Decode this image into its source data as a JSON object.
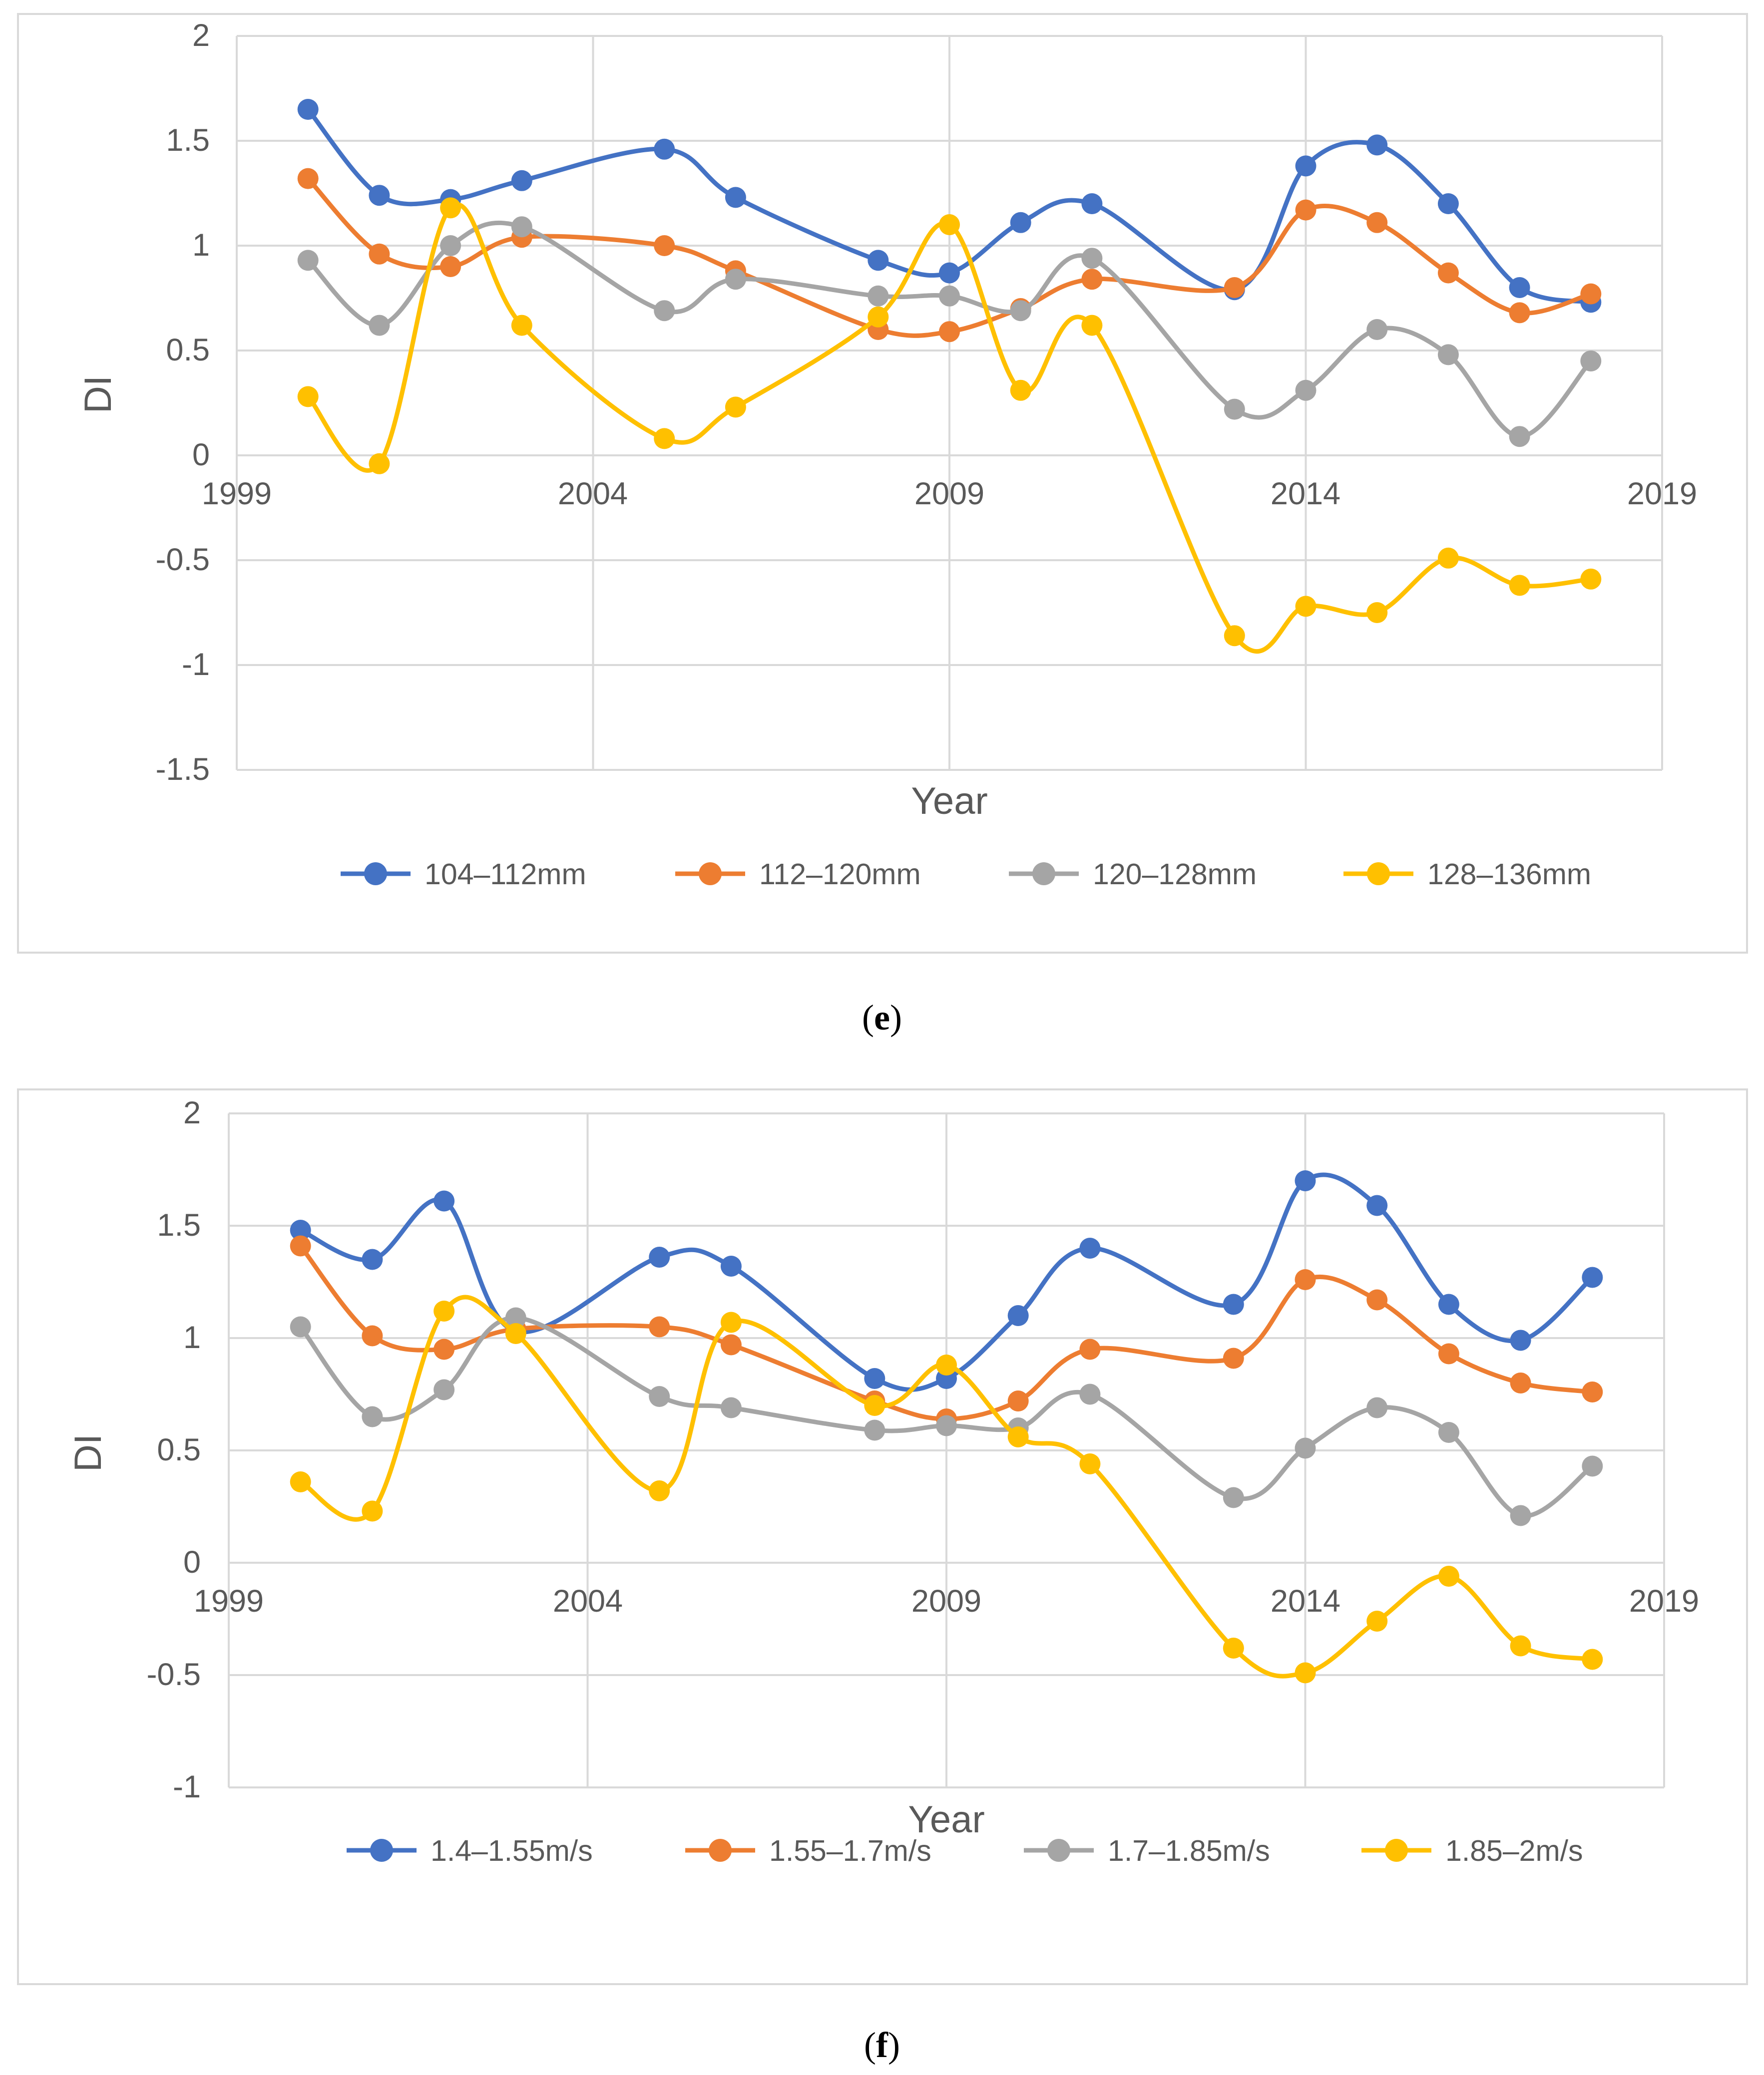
{
  "panels": [
    {
      "caption": "e",
      "chart_data": {
        "type": "line",
        "smooth": true,
        "title": "",
        "xlabel": "Year",
        "ylabel": "DI",
        "xlim": [
          1999,
          2019
        ],
        "ylim": [
          -1.5,
          2
        ],
        "xticks": [
          1999,
          2004,
          2009,
          2014,
          2019
        ],
        "yticks": [
          -1.5,
          -1,
          -0.5,
          0,
          0.5,
          1,
          1.5,
          2
        ],
        "ytick_labels": [
          "-1.5",
          "-1",
          "-0.5",
          "0",
          "0.5",
          "1",
          "1.5",
          "2"
        ],
        "grid": true,
        "legend_position": "bottom",
        "x": [
          2000,
          2001,
          2002,
          2003,
          2005,
          2006,
          2008,
          2009,
          2010,
          2011,
          2013,
          2014,
          2015,
          2016,
          2017,
          2018
        ],
        "series": [
          {
            "name": "104–112mm",
            "color": "#4472C4",
            "values": [
              1.65,
              1.24,
              1.22,
              1.31,
              1.46,
              1.23,
              0.93,
              0.87,
              1.11,
              1.2,
              0.79,
              1.38,
              1.48,
              1.2,
              0.8,
              0.73
            ]
          },
          {
            "name": "112–120mm",
            "color": "#ED7D31",
            "values": [
              1.32,
              0.96,
              0.9,
              1.04,
              1.0,
              0.88,
              0.6,
              0.59,
              0.7,
              0.84,
              0.8,
              1.17,
              1.11,
              0.87,
              0.68,
              0.77
            ]
          },
          {
            "name": "120–128mm",
            "color": "#A5A5A5",
            "values": [
              0.93,
              0.62,
              1.0,
              1.09,
              0.69,
              0.84,
              0.76,
              0.76,
              0.69,
              0.94,
              0.22,
              0.31,
              0.6,
              0.48,
              0.09,
              0.45
            ]
          },
          {
            "name": "128–136mm",
            "color": "#FFC000",
            "values": [
              0.28,
              -0.04,
              1.18,
              0.62,
              0.08,
              0.23,
              0.66,
              1.1,
              0.31,
              0.62,
              -0.86,
              -0.72,
              -0.75,
              -0.49,
              -0.62,
              -0.59
            ]
          }
        ]
      }
    },
    {
      "caption": "f",
      "chart_data": {
        "type": "line",
        "smooth": true,
        "title": "",
        "xlabel": "Year",
        "ylabel": "DI",
        "xlim": [
          1999,
          2019
        ],
        "ylim": [
          -1,
          2
        ],
        "xticks": [
          1999,
          2004,
          2009,
          2014,
          2019
        ],
        "yticks": [
          -1,
          -0.5,
          0,
          0.5,
          1,
          1.5,
          2
        ],
        "ytick_labels": [
          "-1",
          "-0.5",
          "0",
          "0.5",
          "1",
          "1.5",
          "2"
        ],
        "grid": true,
        "legend_position": "bottom",
        "x": [
          2000,
          2001,
          2002,
          2003,
          2005,
          2006,
          2008,
          2009,
          2010,
          2011,
          2013,
          2014,
          2015,
          2016,
          2017,
          2018
        ],
        "series": [
          {
            "name": "1.4–1.55m/s",
            "color": "#4472C4",
            "values": [
              1.48,
              1.35,
              1.61,
              1.03,
              1.36,
              1.32,
              0.82,
              0.82,
              1.1,
              1.4,
              1.15,
              1.7,
              1.59,
              1.15,
              0.99,
              1.27
            ]
          },
          {
            "name": "1.55–1.7m/s",
            "color": "#ED7D31",
            "values": [
              1.41,
              1.01,
              0.95,
              1.04,
              1.05,
              0.97,
              0.72,
              0.64,
              0.72,
              0.95,
              0.91,
              1.26,
              1.17,
              0.93,
              0.8,
              0.76
            ]
          },
          {
            "name": "1.7–1.85m/s",
            "color": "#A5A5A5",
            "values": [
              1.05,
              0.65,
              0.77,
              1.09,
              0.74,
              0.69,
              0.59,
              0.61,
              0.6,
              0.75,
              0.29,
              0.51,
              0.69,
              0.58,
              0.21,
              0.43
            ]
          },
          {
            "name": "1.85–2m/s",
            "color": "#FFC000",
            "values": [
              0.36,
              0.23,
              1.12,
              1.02,
              0.32,
              1.07,
              0.7,
              0.88,
              0.56,
              0.44,
              -0.38,
              -0.49,
              -0.26,
              -0.06,
              -0.37,
              -0.43
            ]
          }
        ]
      }
    }
  ],
  "colors": {
    "grid": "#D9D9D9",
    "frame": "#D9D9D9",
    "text": "#595959"
  }
}
